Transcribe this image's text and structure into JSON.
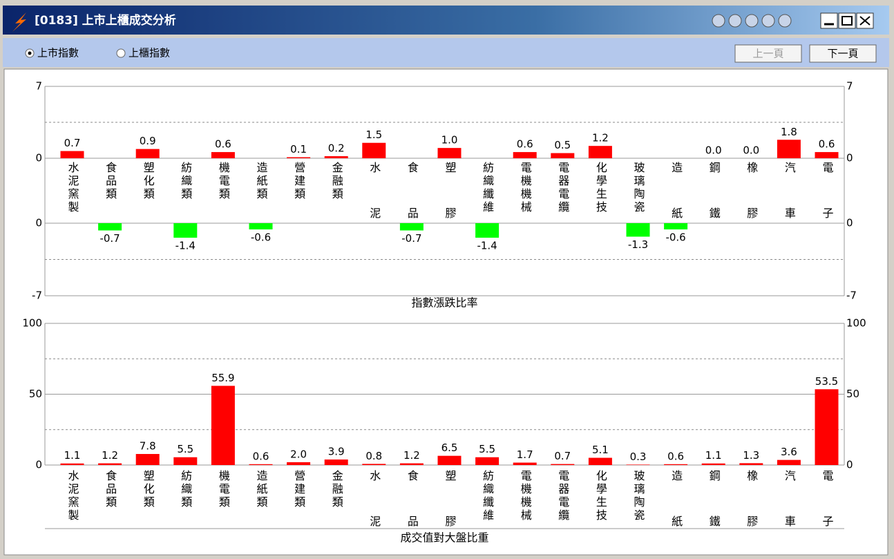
{
  "window": {
    "title": "[0183] 上市上櫃成交分析",
    "radios": [
      {
        "label": "上市指數",
        "selected": true
      },
      {
        "label": "上櫃指數",
        "selected": false
      }
    ],
    "buttons": [
      {
        "label": "上一頁",
        "enabled": false
      },
      {
        "label": "下一頁",
        "enabled": true
      }
    ]
  },
  "chart_data": [
    {
      "type": "bar",
      "xlabel": "指數漲跌比率",
      "categories": [
        "水泥窯製",
        "食品類",
        "塑化類",
        "紡織類",
        "機電類",
        "造紙類",
        "營建類",
        "金融類",
        "水泥",
        "食品",
        "塑膠",
        "紡織纖維",
        "電機機械",
        "電器電纜",
        "化學生技",
        "玻璃陶瓷",
        "造紙",
        "鋼鐵",
        "橡膠",
        "汽車",
        "電子"
      ],
      "values": [
        0.7,
        -0.7,
        0.9,
        -1.4,
        0.6,
        -0.6,
        0.1,
        0.2,
        1.5,
        -0.7,
        1.0,
        -1.4,
        0.6,
        0.5,
        1.2,
        -1.3,
        -0.6,
        0.0,
        0.0,
        1.8,
        0.6
      ],
      "value_labels": [
        "0.7",
        "-0.7",
        "0.9",
        "-1.4",
        "0.6",
        "-0.6",
        "0.1",
        "0.2",
        "1.5",
        "-0.7",
        "1.0",
        "-1.4",
        "0.6",
        "0.5",
        "1.2",
        "-1.3",
        "-0.6",
        "0.0",
        "0.0",
        "1.8",
        "0.6"
      ],
      "color": "#ff0000",
      "negative_color": "#00ff00",
      "ylim": [
        -7,
        7
      ],
      "yticks": [
        -7,
        0,
        7
      ],
      "dashed_grid": [
        -3.5,
        3.5
      ]
    },
    {
      "type": "bar",
      "xlabel": "成交值對大盤比重",
      "categories": [
        "水泥窯製",
        "食品類",
        "塑化類",
        "紡織類",
        "機電類",
        "造紙類",
        "營建類",
        "金融類",
        "水泥",
        "食品",
        "塑膠",
        "紡織纖維",
        "電機機械",
        "電器電纜",
        "化學生技",
        "玻璃陶瓷",
        "造紙",
        "鋼鐵",
        "橡膠",
        "汽車",
        "電子"
      ],
      "values": [
        1.1,
        1.2,
        7.8,
        5.5,
        55.9,
        0.6,
        2.0,
        3.9,
        0.8,
        1.2,
        6.5,
        5.5,
        1.7,
        0.7,
        5.1,
        0.3,
        0.6,
        1.1,
        1.3,
        3.6,
        53.5
      ],
      "value_labels": [
        "1.1",
        "1.2",
        "7.8",
        "5.5",
        "55.9",
        "0.6",
        "2.0",
        "3.9",
        "0.8",
        "1.2",
        "6.5",
        "5.5",
        "1.7",
        "0.7",
        "5.1",
        "0.3",
        "0.6",
        "1.1",
        "1.3",
        "3.6",
        "53.5"
      ],
      "color": "#ff0000",
      "ylim": [
        0,
        100
      ],
      "yticks": [
        0,
        50,
        100
      ],
      "dashed_grid": [
        25,
        75
      ]
    }
  ]
}
